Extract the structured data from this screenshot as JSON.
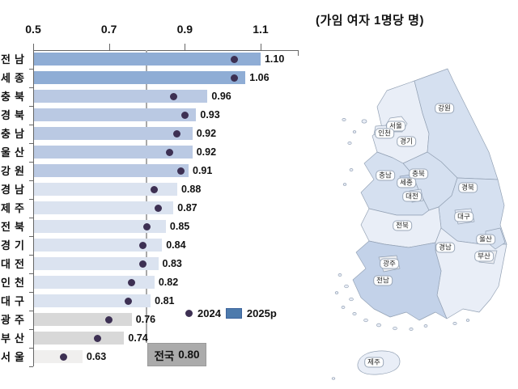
{
  "right_panel_title": "(가임 여자 1명당 명)",
  "legend": {
    "dot_label": "2024",
    "bar_label": "2025p"
  },
  "national_box": {
    "label": "전국",
    "value": "0.80"
  },
  "chart_data": {
    "type": "bar",
    "orientation": "horizontal",
    "title": "",
    "unit_label": "(가임 여자 1명당 명)",
    "x_ticks": [
      0.5,
      0.7,
      0.9,
      1.1
    ],
    "xlim": [
      0.5,
      1.2
    ],
    "grid": false,
    "legend_position": "inside-bottom-right",
    "categories": [
      "전남",
      "세종",
      "충북",
      "경북",
      "충남",
      "울산",
      "강원",
      "경남",
      "제주",
      "전북",
      "경기",
      "대전",
      "인천",
      "대구",
      "광주",
      "부산",
      "서울"
    ],
    "series": [
      {
        "name": "2025p",
        "marker": "bar",
        "values": [
          1.1,
          1.06,
          0.96,
          0.93,
          0.92,
          0.92,
          0.91,
          0.88,
          0.87,
          0.85,
          0.84,
          0.83,
          0.82,
          0.81,
          0.76,
          0.74,
          0.63
        ]
      },
      {
        "name": "2024",
        "marker": "dot",
        "note": "values estimated from dot positions (unlabeled)",
        "values": [
          1.03,
          1.03,
          0.87,
          0.9,
          0.88,
          0.86,
          0.89,
          0.82,
          0.83,
          0.8,
          0.79,
          0.79,
          0.76,
          0.75,
          0.7,
          0.67,
          0.58
        ]
      }
    ],
    "value_labels": [
      "1.10",
      "1.06",
      "0.96",
      "0.93",
      "0.92",
      "0.92",
      "0.91",
      "0.88",
      "0.87",
      "0.85",
      "0.84",
      "0.83",
      "0.82",
      "0.81",
      "0.76",
      "0.74",
      "0.63"
    ],
    "reference_line": {
      "value": 0.8,
      "label": "전국 0.80"
    }
  },
  "map": {
    "labels": {
      "seoul": "서울",
      "incheon": "인천",
      "gyeonggi": "경기",
      "gangwon": "강원",
      "chungnam": "충남",
      "chungbuk": "충북",
      "sejong": "세종",
      "daejeon": "대전",
      "gyeongbuk": "경북",
      "daegu": "대구",
      "jeonbuk": "전북",
      "gyeongnam": "경남",
      "ulsan": "울산",
      "busan": "부산",
      "gwangju": "광주",
      "jeonnam": "전남",
      "jeju": "제주"
    }
  },
  "colors": {
    "bar_tier_1_0": "#8fadd5",
    "bar_tier_0_9": "#bac9e3",
    "bar_tier_0_8": "#dbe3f0",
    "bar_tier_0_7": "#d8d8d8",
    "bar_tier_below": "#f0efee",
    "dot_2024": "#3d3053",
    "legend_bar": "#4d7aac",
    "axis": "#666666",
    "reference_line": "#a9a9a9",
    "national_box_bg": "#ababab",
    "map_tier_1_0": "#c3d2e9",
    "map_tier_0_9": "#d5e0f0",
    "map_tier_0_8": "#e9eef7",
    "map_tier_0_7": "#eaecf0",
    "map_tier_below": "#f8f9fb",
    "map_border": "#93a1b4"
  }
}
